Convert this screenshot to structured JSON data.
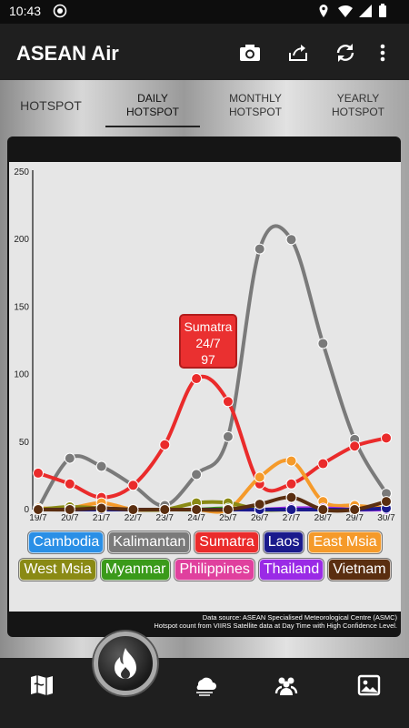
{
  "status_bar": {
    "time": "10:43"
  },
  "app_bar": {
    "title": "ASEAN Air"
  },
  "tabs": [
    {
      "label": "HOTSPOT",
      "active": false
    },
    {
      "label": "DAILY HOTSPOT",
      "active": true
    },
    {
      "label": "MONTHLY HOTSPOT",
      "active": false
    },
    {
      "label": "YEARLY HOTSPOT",
      "active": false
    }
  ],
  "tooltip": {
    "series": "Sumatra",
    "date": "24/7",
    "value": "97"
  },
  "legend": [
    {
      "name": "Cambodia",
      "color": "#2a8fe6"
    },
    {
      "name": "Kalimantan",
      "color": "#7a7a7a"
    },
    {
      "name": "Sumatra",
      "color": "#ea2b2b"
    },
    {
      "name": "Laos",
      "color": "#1a1a8c"
    },
    {
      "name": "East Msia",
      "color": "#f59a2a"
    },
    {
      "name": "West Msia",
      "color": "#8a8a14"
    },
    {
      "name": "Myanmar",
      "color": "#3a9a1a"
    },
    {
      "name": "Philippines",
      "color": "#e0409e"
    },
    {
      "name": "Thailand",
      "color": "#9a2ae6"
    },
    {
      "name": "Vietnam",
      "color": "#5a2e10"
    }
  ],
  "source_note": {
    "line1": "Data source: ASEAN Specialised Meteorological Centre (ASMC)",
    "line2": "Hotspot count from VIIRS Satellite data at Day Time with High Confidence Level."
  },
  "chart_data": {
    "type": "line",
    "categories": [
      "19/7",
      "20/7",
      "21/7",
      "22/7",
      "23/7",
      "24/7",
      "25/7",
      "26/7",
      "27/7",
      "28/7",
      "29/7",
      "30/7"
    ],
    "ylim": [
      0,
      250
    ],
    "yticks": [
      0,
      50,
      100,
      150,
      200,
      250
    ],
    "grid": false,
    "legend_position": "bottom",
    "series": [
      {
        "name": "Kalimantan",
        "color": "#7a7a7a",
        "values": [
          1,
          38,
          32,
          18,
          3,
          26,
          54,
          193,
          200,
          123,
          52,
          12
        ]
      },
      {
        "name": "Sumatra",
        "color": "#ea2b2b",
        "values": [
          27,
          19,
          9,
          18,
          48,
          97,
          80,
          19,
          19,
          34,
          47,
          53
        ]
      },
      {
        "name": "East Msia",
        "color": "#f59a2a",
        "values": [
          1,
          1,
          5,
          0,
          0,
          0,
          0,
          24,
          36,
          6,
          3,
          1
        ]
      },
      {
        "name": "West Msia",
        "color": "#8a8a14",
        "values": [
          0,
          2,
          1,
          0,
          0,
          5,
          5,
          0,
          0,
          0,
          0,
          0
        ]
      },
      {
        "name": "Myanmar",
        "color": "#3a9a1a",
        "values": [
          0,
          0,
          0,
          0,
          0,
          0,
          1,
          0,
          0,
          0,
          0,
          0
        ]
      },
      {
        "name": "Thailand",
        "color": "#9a2ae6",
        "values": [
          0,
          0,
          0,
          0,
          0,
          0,
          0,
          0,
          1,
          1,
          0,
          0
        ]
      },
      {
        "name": "Laos",
        "color": "#1a1a8c",
        "values": [
          0,
          0,
          0,
          0,
          0,
          0,
          0,
          0,
          0,
          0,
          0,
          1
        ]
      },
      {
        "name": "Vietnam",
        "color": "#5a2e10",
        "values": [
          0,
          0,
          1,
          0,
          0,
          0,
          0,
          4,
          9,
          0,
          0,
          6
        ]
      }
    ]
  }
}
